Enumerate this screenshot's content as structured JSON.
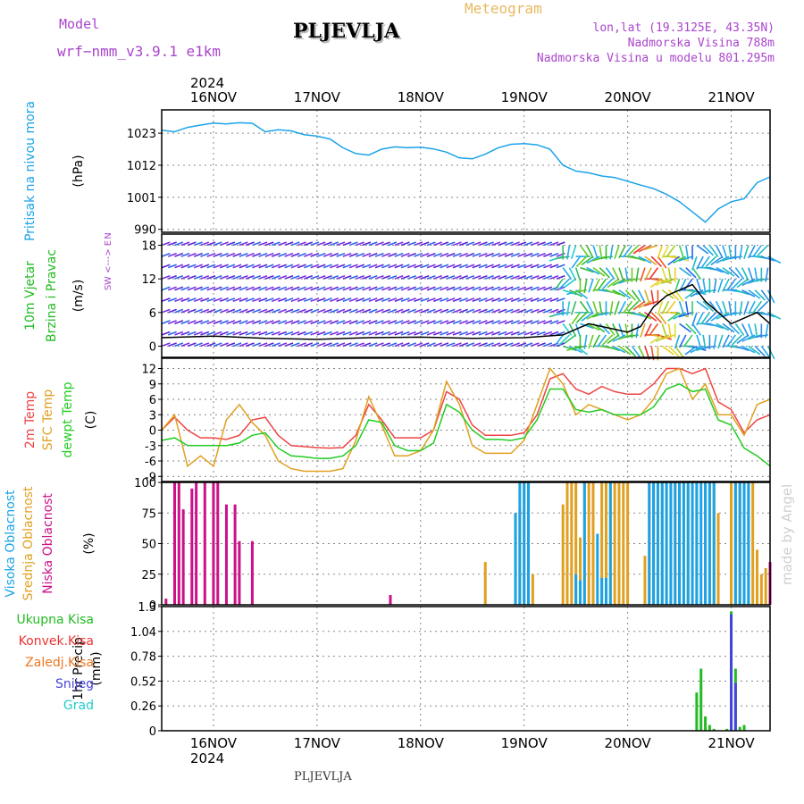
{
  "header": {
    "model_label": "Model",
    "model_name": "wrf−nmm_v3.9.1  e1km",
    "location": "PLJEVLJA",
    "meteogram_title": "Meteogram",
    "coords": "lon,lat (19.3125E, 43.35N)",
    "elevation": "Nadmorska Visina 788m",
    "model_elevation": "Nadmorska Visina u modelu 801.295m",
    "year_top": "2024",
    "year_bottom": "2024",
    "footer_location": "PLJEVLJA",
    "credit": "made by Angel"
  },
  "colors": {
    "pressure": "#1aa3e8",
    "wind_label": "#22bb22",
    "temp2m": "#ee4444",
    "sfc": "#e0a020",
    "dewpt": "#22cc22",
    "high_cloud": "#1aa3e8",
    "mid_cloud": "#e0a020",
    "low_cloud": "#cc1188",
    "total_precip": "#22bb22",
    "conv_precip": "#ee3333",
    "frz_precip": "#ee7722",
    "snow": "#4444dd",
    "graupel": "#22cccc",
    "model_text": "#aa44cc",
    "meteogram_text": "#e8b860"
  },
  "chart_data": {
    "type": "line",
    "x_unit": "hours since 2024-11-15 12:00 UTC",
    "x_range": [
      0,
      141
    ],
    "days": [
      "16NOV",
      "17NOV",
      "18NOV",
      "19NOV",
      "20NOV",
      "21NOV"
    ],
    "day_hours": [
      12,
      36,
      60,
      84,
      108,
      132
    ],
    "panels": [
      {
        "id": "pressure",
        "labels": [
          "Pritisak na nivou mora",
          "(hPa)"
        ],
        "label_colors": [
          "#1aa3e8",
          "#000000"
        ],
        "yticks": [
          "1023",
          "1012",
          "1001",
          "990"
        ],
        "ytick_values": [
          1023,
          1012,
          1001,
          990
        ],
        "ylim": [
          989,
          1031
        ],
        "series": [
          {
            "name": "Pritisak",
            "color": "#1aa3e8",
            "x": [
              0,
              3,
              6,
              9,
              12,
              15,
              18,
              21,
              24,
              27,
              30,
              33,
              36,
              39,
              42,
              45,
              48,
              51,
              54,
              57,
              60,
              63,
              66,
              69,
              72,
              75,
              78,
              81,
              84,
              87,
              90,
              93,
              96,
              99,
              102,
              105,
              108,
              111,
              114,
              117,
              120,
              123,
              126,
              129,
              132,
              135,
              138,
              141
            ],
            "y": [
              1024,
              1023.5,
              1025,
              1025.8,
              1026.5,
              1026.2,
              1026.6,
              1026.4,
              1023.5,
              1024.2,
              1023.8,
              1022.5,
              1022,
              1021,
              1018,
              1016,
              1015.5,
              1017.5,
              1018.3,
              1018,
              1018.2,
              1017.6,
              1016.5,
              1014.5,
              1014.2,
              1015.8,
              1018,
              1019.2,
              1019.4,
              1019,
              1017.5,
              1012,
              1010,
              1009.4,
              1008.3,
              1007.8,
              1006.5,
              1005.2,
              1004,
              1002,
              999.5,
              996,
              992.5,
              997,
              999.5,
              1000.5,
              1006,
              1008
            ]
          }
        ]
      },
      {
        "id": "wind",
        "labels": [
          "10m Vjetar",
          "Brzina i Pravac",
          "(m/s)"
        ],
        "label_colors": [
          "#22bb22",
          "#22bb22",
          "#000000"
        ],
        "legend": [
          "N",
          "W <---> E",
          "S"
        ],
        "yticks": [
          "18",
          "12",
          "6",
          "0"
        ],
        "ytick_values": [
          18,
          12,
          6,
          0
        ],
        "ylim": [
          -2,
          20
        ],
        "series": [
          {
            "name": "Brzina",
            "color": "#000000",
            "x": [
              0,
              12,
              24,
              36,
              48,
              60,
              72,
              84,
              93,
              96,
              99,
              102,
              105,
              108,
              111,
              114,
              117,
              120,
              123,
              126,
              129,
              132,
              135,
              138,
              141
            ],
            "y": [
              1.5,
              1.8,
              1.4,
              1.2,
              1.5,
              1.6,
              1.4,
              1.5,
              2,
              3,
              4,
              3.5,
              3,
              2.5,
              3.5,
              7,
              9,
              10,
              11,
              8,
              6,
              4,
              5,
              6,
              4
            ]
          }
        ]
      },
      {
        "id": "temperature",
        "labels": [
          "2m Temp",
          "SFC Temp",
          "dewpt Temp",
          "(C)"
        ],
        "label_colors": [
          "#ee4444",
          "#e0a020",
          "#22cc22",
          "#000000"
        ],
        "yticks": [
          "12",
          "9",
          "6",
          "3",
          "0",
          "-3",
          "-6",
          "-9"
        ],
        "ytick_values": [
          12,
          9,
          6,
          3,
          0,
          -3,
          -6,
          -9
        ],
        "ylim": [
          -10,
          14
        ],
        "series": [
          {
            "name": "2m Temp",
            "color": "#ee4444",
            "x": [
              0,
              3,
              6,
              9,
              12,
              15,
              18,
              21,
              24,
              27,
              30,
              33,
              36,
              39,
              42,
              45,
              48,
              51,
              54,
              57,
              60,
              63,
              66,
              69,
              72,
              75,
              78,
              81,
              84,
              87,
              90,
              93,
              96,
              99,
              102,
              105,
              108,
              111,
              114,
              117,
              120,
              123,
              126,
              129,
              132,
              135,
              138,
              141
            ],
            "y": [
              0,
              2.5,
              0,
              -1.5,
              -1.5,
              -1.8,
              -1,
              2,
              2.5,
              -1,
              -3,
              -3.2,
              -3.4,
              -3.5,
              -3.4,
              -1,
              5,
              2,
              -1.5,
              -1.5,
              -1.5,
              0,
              7.5,
              6,
              1,
              -1,
              -1,
              -1,
              -0.5,
              3,
              10,
              11,
              8,
              7,
              8.5,
              7.5,
              7,
              7,
              9,
              12,
              12,
              11,
              12,
              5.5,
              4,
              -0.5,
              2,
              3
            ]
          },
          {
            "name": "SFC Temp",
            "color": "#e0a020",
            "x": [
              0,
              3,
              6,
              9,
              12,
              15,
              18,
              21,
              24,
              27,
              30,
              33,
              36,
              39,
              42,
              45,
              48,
              51,
              54,
              57,
              60,
              63,
              66,
              69,
              72,
              75,
              78,
              81,
              84,
              87,
              90,
              93,
              96,
              99,
              102,
              105,
              108,
              111,
              114,
              117,
              120,
              123,
              126,
              129,
              132,
              135,
              138,
              141
            ],
            "y": [
              0,
              3,
              -7,
              -5,
              -7,
              2,
              5,
              1.5,
              -1,
              -6,
              -7.5,
              -8,
              -8,
              -8,
              -7.5,
              -2,
              6.5,
              1,
              -5,
              -5,
              -4,
              0,
              9.5,
              5,
              -3,
              -4.5,
              -4.5,
              -4.5,
              -2,
              5,
              12,
              9,
              3,
              5,
              4,
              3,
              2,
              3,
              6,
              11,
              12,
              6,
              9,
              3,
              3,
              -1,
              5,
              6
            ]
          },
          {
            "name": "dewpt Temp",
            "color": "#22cc22",
            "x": [
              0,
              3,
              6,
              9,
              12,
              15,
              18,
              21,
              24,
              27,
              30,
              33,
              36,
              39,
              42,
              45,
              48,
              51,
              54,
              57,
              60,
              63,
              66,
              69,
              72,
              75,
              78,
              81,
              84,
              87,
              90,
              93,
              96,
              99,
              102,
              105,
              108,
              111,
              114,
              117,
              120,
              123,
              126,
              129,
              132,
              135,
              138,
              141
            ],
            "y": [
              -2,
              -1.5,
              -3,
              -3,
              -3,
              -3,
              -2.5,
              -1,
              -0.5,
              -3.5,
              -5,
              -5.2,
              -5.5,
              -5.5,
              -5,
              -3,
              2,
              1.5,
              -3,
              -4,
              -4,
              -2.5,
              5,
              3.5,
              0,
              -1.8,
              -1.8,
              -2,
              -1.5,
              2,
              8,
              8,
              4,
              3.5,
              4,
              3,
              3,
              3,
              4.5,
              8,
              9,
              7.5,
              8,
              2,
              1,
              -3.5,
              -5,
              -7
            ]
          }
        ]
      },
      {
        "id": "clouds",
        "labels": [
          "Visoka Oblacnost",
          "Srednja Oblacnost",
          "Niska Oblacnost",
          "(%)"
        ],
        "label_colors": [
          "#1aa3e8",
          "#e0a020",
          "#cc1188",
          "#000000"
        ],
        "yticks": [
          "100",
          "75",
          "50",
          "25",
          "0"
        ],
        "ytick_values": [
          100,
          75,
          50,
          25,
          0
        ],
        "ylim": [
          0,
          100
        ],
        "bars": [
          {
            "name": "Niska Oblacnost",
            "color": "#cc1188",
            "x": [
              1,
              3,
              4,
              5,
              7,
              8,
              10,
              12,
              13,
              15,
              17,
              18,
              21,
              53,
              141
            ],
            "y": [
              5,
              100,
              100,
              78,
              95,
              100,
              100,
              100,
              100,
              82,
              82,
              52,
              52,
              8,
              35
            ]
          },
          {
            "name": "Srednja Oblacnost",
            "color": "#e0a020",
            "x": [
              75,
              82,
              83,
              84,
              85,
              86,
              93,
              94,
              95,
              96,
              97,
              98,
              99,
              100,
              102,
              103,
              104,
              105,
              106,
              107,
              108,
              112,
              113,
              114,
              115,
              116,
              117,
              118,
              119,
              120,
              121,
              122,
              123,
              124,
              126,
              127,
              128,
              129,
              132,
              133,
              134,
              135,
              136,
              137,
              138,
              139,
              140
            ],
            "y": [
              35,
              75,
              78,
              100,
              100,
              25,
              82,
              100,
              100,
              100,
              55,
              100,
              100,
              100,
              100,
              100,
              100,
              100,
              100,
              100,
              100,
              40,
              100,
              100,
              100,
              100,
              100,
              100,
              100,
              100,
              100,
              100,
              100,
              100,
              100,
              100,
              100,
              75,
              100,
              100,
              100,
              100,
              100,
              100,
              45,
              25,
              30
            ]
          },
          {
            "name": "Visoka Oblacnost",
            "color": "#1aa3e8",
            "x": [
              82,
              83,
              84,
              85,
              96,
              97,
              98,
              101,
              102,
              103,
              104,
              113,
              114,
              115,
              116,
              117,
              118,
              119,
              120,
              121,
              122,
              123,
              124,
              125,
              126,
              127,
              128,
              133,
              134,
              135,
              136
            ],
            "y": [
              75,
              100,
              100,
              100,
              25,
              20,
              100,
              58,
              22,
              22,
              100,
              100,
              100,
              100,
              100,
              100,
              100,
              100,
              100,
              100,
              100,
              100,
              100,
              100,
              100,
              100,
              100,
              100,
              100,
              100,
              100
            ]
          }
        ]
      },
      {
        "id": "precip",
        "labels": [
          "1hr Precip",
          "(mm)"
        ],
        "label_colors": [
          "#000000",
          "#000000"
        ],
        "legend": [
          {
            "label": "Ukupna  Kisa",
            "color": "#22bb22"
          },
          {
            "label": "Konvek.Kisa",
            "color": "#ee3333"
          },
          {
            "label": "Zaledj.Kisa",
            "color": "#ee7722"
          },
          {
            "label": "Snijeg",
            "color": "#4444dd"
          },
          {
            "label": "Grad",
            "color": "#22cccc"
          }
        ],
        "yticks": [
          "1.3",
          "1.04",
          "0.78",
          "0.52",
          "0.26",
          "0"
        ],
        "ytick_values": [
          1.3,
          1.04,
          0.78,
          0.52,
          0.26,
          0
        ],
        "ylim": [
          0,
          1.3
        ],
        "bars": [
          {
            "name": "Ukupna Kisa",
            "color": "#22bb22",
            "x": [
              124,
              125,
              126,
              127,
              128,
              131,
              132,
              133,
              134,
              135
            ],
            "y": [
              0.4,
              0.65,
              0.15,
              0.06,
              0.02,
              0.02,
              1.25,
              0.65,
              0.04,
              0.06
            ]
          },
          {
            "name": "Snijeg",
            "color": "#4444dd",
            "x": [
              132,
              133
            ],
            "y": [
              1.22,
              0.5
            ]
          }
        ]
      }
    ]
  }
}
